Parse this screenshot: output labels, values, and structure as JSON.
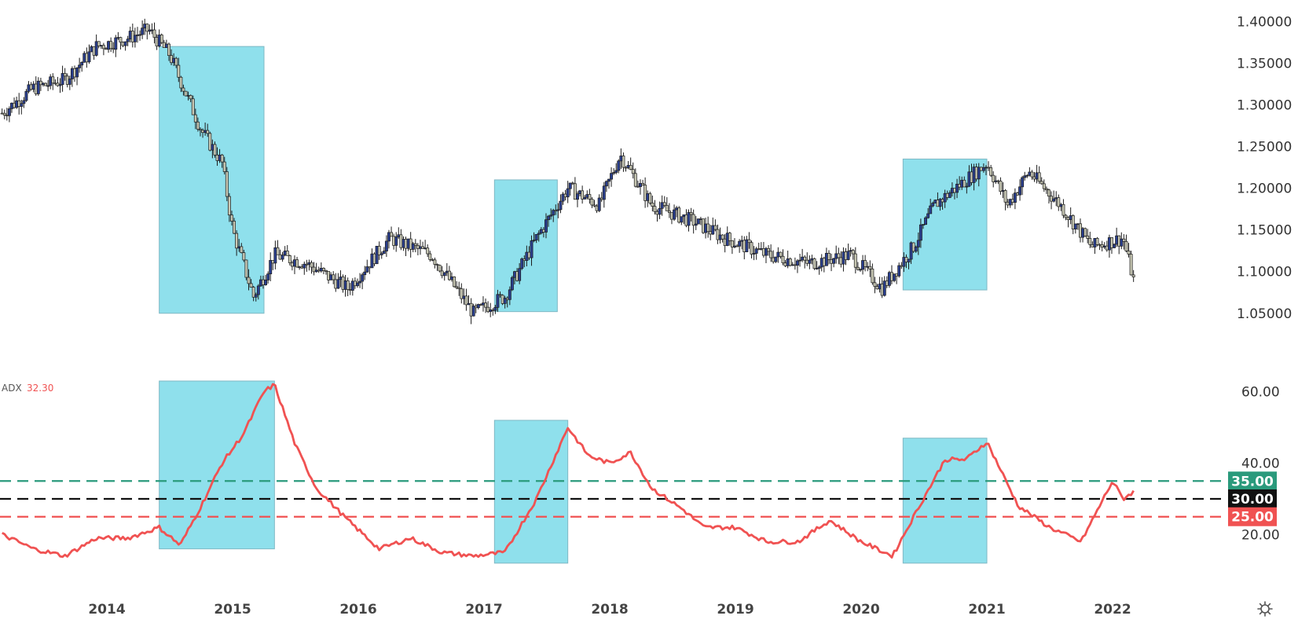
{
  "chart_data": [
    {
      "type": "candlestick",
      "title": "",
      "ylim": [
        1.03,
        1.405
      ],
      "y_ticks": [
        "1.40000",
        "1.35000",
        "1.30000",
        "1.25000",
        "1.20000",
        "1.15000",
        "1.10000",
        "1.05000"
      ],
      "series": [
        {
          "description": "approximate close path by date",
          "points": [
            [
              "2013-03",
              1.29
            ],
            [
              "2013-06",
              1.32
            ],
            [
              "2013-09",
              1.33
            ],
            [
              "2013-12",
              1.37
            ],
            [
              "2014-03",
              1.38
            ],
            [
              "2014-05",
              1.39
            ],
            [
              "2014-07",
              1.36
            ],
            [
              "2014-10",
              1.27
            ],
            [
              "2014-12",
              1.23
            ],
            [
              "2015-01",
              1.15
            ],
            [
              "2015-03",
              1.07
            ],
            [
              "2015-05",
              1.12
            ],
            [
              "2015-08",
              1.11
            ],
            [
              "2015-12",
              1.08
            ],
            [
              "2016-04",
              1.14
            ],
            [
              "2016-08",
              1.12
            ],
            [
              "2016-12",
              1.05
            ],
            [
              "2017-03",
              1.07
            ],
            [
              "2017-06",
              1.14
            ],
            [
              "2017-09",
              1.2
            ],
            [
              "2017-12",
              1.18
            ],
            [
              "2018-02",
              1.24
            ],
            [
              "2018-05",
              1.18
            ],
            [
              "2018-09",
              1.16
            ],
            [
              "2018-12",
              1.14
            ],
            [
              "2019-04",
              1.12
            ],
            [
              "2019-08",
              1.11
            ],
            [
              "2019-12",
              1.12
            ],
            [
              "2020-03",
              1.08
            ],
            [
              "2020-06",
              1.13
            ],
            [
              "2020-08",
              1.18
            ],
            [
              "2020-12",
              1.22
            ],
            [
              "2021-01",
              1.23
            ],
            [
              "2021-03",
              1.18
            ],
            [
              "2021-05",
              1.22
            ],
            [
              "2021-08",
              1.18
            ],
            [
              "2021-11",
              1.13
            ],
            [
              "2022-02",
              1.14
            ],
            [
              "2022-03",
              1.09
            ]
          ]
        }
      ],
      "highlights": [
        {
          "from": "2014-06",
          "to": "2015-04",
          "y_range": [
            1.05,
            1.37
          ]
        },
        {
          "from": "2017-02",
          "to": "2017-08",
          "y_range": [
            1.052,
            1.21
          ]
        },
        {
          "from": "2020-05",
          "to": "2021-01",
          "y_range": [
            1.078,
            1.235
          ]
        }
      ]
    },
    {
      "type": "line",
      "legend_name": "ADX",
      "legend_value": "32.30",
      "ylim": [
        8,
        63
      ],
      "y_ticks": [
        "60.00",
        "40.00",
        "20.00"
      ],
      "series": [
        {
          "name": "ADX",
          "color": "#f05252",
          "points": [
            [
              "2013-03",
              20
            ],
            [
              "2013-06",
              16
            ],
            [
              "2013-09",
              14
            ],
            [
              "2013-12",
              19
            ],
            [
              "2014-03",
              19
            ],
            [
              "2014-06",
              22
            ],
            [
              "2014-08",
              17
            ],
            [
              "2014-10",
              28
            ],
            [
              "2014-12",
              40
            ],
            [
              "2015-02",
              48
            ],
            [
              "2015-04",
              60
            ],
            [
              "2015-05",
              62
            ],
            [
              "2015-07",
              45
            ],
            [
              "2015-09",
              33
            ],
            [
              "2015-12",
              24
            ],
            [
              "2016-03",
              16
            ],
            [
              "2016-06",
              19
            ],
            [
              "2016-09",
              15
            ],
            [
              "2016-12",
              14
            ],
            [
              "2017-03",
              15
            ],
            [
              "2017-06",
              30
            ],
            [
              "2017-09",
              50
            ],
            [
              "2017-11",
              42
            ],
            [
              "2018-01",
              40
            ],
            [
              "2018-03",
              43
            ],
            [
              "2018-05",
              33
            ],
            [
              "2018-08",
              27
            ],
            [
              "2018-10",
              22
            ],
            [
              "2019-01",
              22
            ],
            [
              "2019-04",
              18
            ],
            [
              "2019-07",
              18
            ],
            [
              "2019-10",
              24
            ],
            [
              "2020-01",
              18
            ],
            [
              "2020-04",
              14
            ],
            [
              "2020-06",
              25
            ],
            [
              "2020-09",
              41
            ],
            [
              "2020-11",
              41
            ],
            [
              "2021-01",
              46
            ],
            [
              "2021-04",
              28
            ],
            [
              "2021-07",
              22
            ],
            [
              "2021-10",
              18
            ],
            [
              "2022-01",
              35
            ],
            [
              "2022-02",
              30
            ],
            [
              "2022-03",
              32
            ]
          ]
        }
      ],
      "reference_lines": [
        {
          "value": 35,
          "label": "35.00",
          "color": "#2a9a7c"
        },
        {
          "value": 30,
          "label": "30.00",
          "color": "#111111"
        },
        {
          "value": 25,
          "label": "25.00",
          "color": "#f05252"
        }
      ],
      "highlights": [
        {
          "from": "2014-06",
          "to": "2015-05",
          "y_range": [
            16,
            63
          ]
        },
        {
          "from": "2017-02",
          "to": "2017-09",
          "y_range": [
            12,
            52
          ]
        },
        {
          "from": "2020-05",
          "to": "2021-01",
          "y_range": [
            12,
            47
          ]
        }
      ]
    }
  ],
  "x_axis": {
    "labels": [
      "2014",
      "2015",
      "2016",
      "2017",
      "2018",
      "2019",
      "2020",
      "2021",
      "2022"
    ]
  },
  "colors": {
    "highlight": "#8fe0ec",
    "candle": "#1c1c1c",
    "adx_line": "#f05252"
  },
  "icons": {
    "settings": "gear-icon"
  }
}
